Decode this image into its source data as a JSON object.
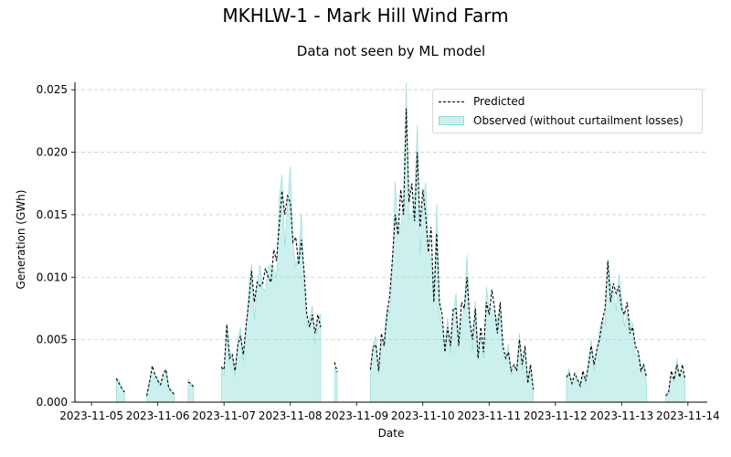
{
  "title": "MKHLW-1 - Mark Hill Wind Farm",
  "subtitle": "Data not seen by ML model",
  "chart_data": {
    "type": "line",
    "xlabel": "Date",
    "ylabel": "Generation (GWh)",
    "xlim": [
      "2023-11-04 18:00",
      "2023-11-14 07:00"
    ],
    "ylim": [
      0,
      0.0256
    ],
    "x_ticks": [
      "2023-11-05",
      "2023-11-06",
      "2023-11-07",
      "2023-11-08",
      "2023-11-09",
      "2023-11-10",
      "2023-11-11",
      "2023-11-12",
      "2023-11-13",
      "2023-11-14"
    ],
    "y_ticks": [
      "0.000",
      "0.005",
      "0.010",
      "0.015",
      "0.020",
      "0.025"
    ],
    "grid": "horizontal dashed",
    "legend_position": "top-right",
    "colors": {
      "predicted": "#000000",
      "observed_fill": "#7fd8d2"
    },
    "series": [
      {
        "name": "Predicted",
        "style": "dashed line",
        "points": [
          [
            "2023-11-05 09:00",
            0.0019
          ],
          [
            "2023-11-05 10:00",
            0.0015
          ],
          [
            "2023-11-05 11:00",
            0.0011
          ],
          [
            "2023-11-05 12:00",
            0.0008
          ],
          [
            "2023-11-05 13:00",
            null
          ],
          [
            "2023-11-05 20:00",
            0.0005
          ],
          [
            "2023-11-05 21:00",
            0.0016
          ],
          [
            "2023-11-05 22:00",
            0.0029
          ],
          [
            "2023-11-05 23:00",
            0.0022
          ],
          [
            "2023-11-06 00:00",
            0.0017
          ],
          [
            "2023-11-06 01:00",
            0.0014
          ],
          [
            "2023-11-06 02:00",
            0.0023
          ],
          [
            "2023-11-06 03:00",
            0.0026
          ],
          [
            "2023-11-06 04:00",
            0.0011
          ],
          [
            "2023-11-06 05:00",
            0.0009
          ],
          [
            "2023-11-06 06:00",
            0.0006
          ],
          [
            "2023-11-06 07:00",
            null
          ],
          [
            "2023-11-06 11:00",
            0.0016
          ],
          [
            "2023-11-06 12:00",
            0.0015
          ],
          [
            "2023-11-06 13:00",
            0.0012
          ],
          [
            "2023-11-06 14:00",
            null
          ],
          [
            "2023-11-06 23:00",
            0.0028
          ],
          [
            "2023-11-07 00:00",
            0.0026
          ],
          [
            "2023-11-07 01:00",
            0.0062
          ],
          [
            "2023-11-07 02:00",
            0.0035
          ],
          [
            "2023-11-07 03:00",
            0.0038
          ],
          [
            "2023-11-07 04:00",
            0.0025
          ],
          [
            "2023-11-07 05:00",
            0.0046
          ],
          [
            "2023-11-07 06:00",
            0.0053
          ],
          [
            "2023-11-07 07:00",
            0.0038
          ],
          [
            "2023-11-07 08:00",
            0.0062
          ],
          [
            "2023-11-07 09:00",
            0.0081
          ],
          [
            "2023-11-07 10:00",
            0.0105
          ],
          [
            "2023-11-07 11:00",
            0.008
          ],
          [
            "2023-11-07 12:00",
            0.0096
          ],
          [
            "2023-11-07 13:00",
            0.0093
          ],
          [
            "2023-11-07 14:00",
            0.0095
          ],
          [
            "2023-11-07 15:00",
            0.0107
          ],
          [
            "2023-11-07 16:00",
            0.01
          ],
          [
            "2023-11-07 17:00",
            0.0096
          ],
          [
            "2023-11-07 18:00",
            0.0122
          ],
          [
            "2023-11-07 19:00",
            0.0113
          ],
          [
            "2023-11-07 20:00",
            0.0142
          ],
          [
            "2023-11-07 21:00",
            0.0169
          ],
          [
            "2023-11-07 22:00",
            0.015
          ],
          [
            "2023-11-07 23:00",
            0.0165
          ],
          [
            "2023-11-08 00:00",
            0.016
          ],
          [
            "2023-11-08 01:00",
            0.0128
          ],
          [
            "2023-11-08 02:00",
            0.0132
          ],
          [
            "2023-11-08 03:00",
            0.011
          ],
          [
            "2023-11-08 04:00",
            0.013
          ],
          [
            "2023-11-08 05:00",
            0.0105
          ],
          [
            "2023-11-08 06:00",
            0.007
          ],
          [
            "2023-11-08 07:00",
            0.006
          ],
          [
            "2023-11-08 08:00",
            0.007
          ],
          [
            "2023-11-08 09:00",
            0.0055
          ],
          [
            "2023-11-08 10:00",
            0.007
          ],
          [
            "2023-11-08 11:00",
            0.006
          ],
          [
            "2023-11-08 12:00",
            null
          ],
          [
            "2023-11-08 16:00",
            0.0032
          ],
          [
            "2023-11-08 17:00",
            0.0024
          ],
          [
            "2023-11-08 18:00",
            null
          ],
          [
            "2023-11-09 05:00",
            0.0026
          ],
          [
            "2023-11-09 06:00",
            0.0044
          ],
          [
            "2023-11-09 07:00",
            0.0046
          ],
          [
            "2023-11-09 08:00",
            0.0025
          ],
          [
            "2023-11-09 09:00",
            0.0055
          ],
          [
            "2023-11-09 10:00",
            0.0045
          ],
          [
            "2023-11-09 11:00",
            0.007
          ],
          [
            "2023-11-09 12:00",
            0.0085
          ],
          [
            "2023-11-09 13:00",
            0.0115
          ],
          [
            "2023-11-09 14:00",
            0.015
          ],
          [
            "2023-11-09 15:00",
            0.0134
          ],
          [
            "2023-11-09 16:00",
            0.017
          ],
          [
            "2023-11-09 17:00",
            0.015
          ],
          [
            "2023-11-09 18:00",
            0.0235
          ],
          [
            "2023-11-09 19:00",
            0.016
          ],
          [
            "2023-11-09 20:00",
            0.0175
          ],
          [
            "2023-11-09 21:00",
            0.0145
          ],
          [
            "2023-11-09 22:00",
            0.02
          ],
          [
            "2023-11-09 23:00",
            0.014
          ],
          [
            "2023-11-10 00:00",
            0.017
          ],
          [
            "2023-11-10 01:00",
            0.015
          ],
          [
            "2023-11-10 02:00",
            0.012
          ],
          [
            "2023-11-10 03:00",
            0.014
          ],
          [
            "2023-11-10 04:00",
            0.008
          ],
          [
            "2023-11-10 05:00",
            0.0135
          ],
          [
            "2023-11-10 06:00",
            0.008
          ],
          [
            "2023-11-10 07:00",
            0.007
          ],
          [
            "2023-11-10 08:00",
            0.004
          ],
          [
            "2023-11-10 09:00",
            0.006
          ],
          [
            "2023-11-10 10:00",
            0.0045
          ],
          [
            "2023-11-10 11:00",
            0.0075
          ],
          [
            "2023-11-10 12:00",
            0.0075
          ],
          [
            "2023-11-10 13:00",
            0.0045
          ],
          [
            "2023-11-10 14:00",
            0.008
          ],
          [
            "2023-11-10 15:00",
            0.0075
          ],
          [
            "2023-11-10 16:00",
            0.01
          ],
          [
            "2023-11-10 17:00",
            0.0065
          ],
          [
            "2023-11-10 18:00",
            0.005
          ],
          [
            "2023-11-10 19:00",
            0.0075
          ],
          [
            "2023-11-10 20:00",
            0.0035
          ],
          [
            "2023-11-10 21:00",
            0.006
          ],
          [
            "2023-11-10 22:00",
            0.004
          ],
          [
            "2023-11-10 23:00",
            0.008
          ],
          [
            "2023-11-11 00:00",
            0.007
          ],
          [
            "2023-11-11 01:00",
            0.009
          ],
          [
            "2023-11-11 02:00",
            0.0075
          ],
          [
            "2023-11-11 03:00",
            0.0055
          ],
          [
            "2023-11-11 04:00",
            0.008
          ],
          [
            "2023-11-11 05:00",
            0.0045
          ],
          [
            "2023-11-11 06:00",
            0.0035
          ],
          [
            "2023-11-11 07:00",
            0.004
          ],
          [
            "2023-11-11 08:00",
            0.0025
          ],
          [
            "2023-11-11 09:00",
            0.003
          ],
          [
            "2023-11-11 10:00",
            0.0025
          ],
          [
            "2023-11-11 11:00",
            0.005
          ],
          [
            "2023-11-11 12:00",
            0.003
          ],
          [
            "2023-11-11 13:00",
            0.0045
          ],
          [
            "2023-11-11 14:00",
            0.0015
          ],
          [
            "2023-11-11 15:00",
            0.003
          ],
          [
            "2023-11-11 16:00",
            0.001
          ],
          [
            "2023-11-11 17:00",
            null
          ],
          [
            "2023-11-12 04:00",
            0.002
          ],
          [
            "2023-11-12 05:00",
            0.0023
          ],
          [
            "2023-11-12 06:00",
            0.0015
          ],
          [
            "2023-11-12 07:00",
            0.0023
          ],
          [
            "2023-11-12 08:00",
            0.0018
          ],
          [
            "2023-11-12 09:00",
            0.0013
          ],
          [
            "2023-11-12 10:00",
            0.0025
          ],
          [
            "2023-11-12 11:00",
            0.0017
          ],
          [
            "2023-11-12 12:00",
            0.003
          ],
          [
            "2023-11-12 13:00",
            0.0045
          ],
          [
            "2023-11-12 14:00",
            0.003
          ],
          [
            "2023-11-12 15:00",
            0.0042
          ],
          [
            "2023-11-12 16:00",
            0.005
          ],
          [
            "2023-11-12 17:00",
            0.0065
          ],
          [
            "2023-11-12 18:00",
            0.0075
          ],
          [
            "2023-11-12 19:00",
            0.0113
          ],
          [
            "2023-11-12 20:00",
            0.008
          ],
          [
            "2023-11-12 21:00",
            0.0095
          ],
          [
            "2023-11-12 22:00",
            0.0087
          ],
          [
            "2023-11-12 23:00",
            0.0093
          ],
          [
            "2023-11-13 00:00",
            0.0075
          ],
          [
            "2023-11-13 01:00",
            0.007
          ],
          [
            "2023-11-13 02:00",
            0.008
          ],
          [
            "2023-11-13 03:00",
            0.0055
          ],
          [
            "2023-11-13 04:00",
            0.006
          ],
          [
            "2023-11-13 05:00",
            0.0045
          ],
          [
            "2023-11-13 06:00",
            0.004
          ],
          [
            "2023-11-13 07:00",
            0.0025
          ],
          [
            "2023-11-13 08:00",
            0.003
          ],
          [
            "2023-11-13 09:00",
            0.002
          ],
          [
            "2023-11-13 10:00",
            null
          ],
          [
            "2023-11-13 16:00",
            0.0005
          ],
          [
            "2023-11-13 17:00",
            0.0008
          ],
          [
            "2023-11-13 18:00",
            0.0025
          ],
          [
            "2023-11-13 19:00",
            0.0018
          ],
          [
            "2023-11-13 20:00",
            0.003
          ],
          [
            "2023-11-13 21:00",
            0.002
          ],
          [
            "2023-11-13 22:00",
            0.003
          ],
          [
            "2023-11-13 23:00",
            0.0018
          ]
        ]
      }
    ],
    "observed_note": "filled area series",
    "observed_points": []
  },
  "legend": {
    "items": [
      {
        "label": "Predicted"
      },
      {
        "label": "Observed (without curtailment losses)"
      }
    ]
  }
}
